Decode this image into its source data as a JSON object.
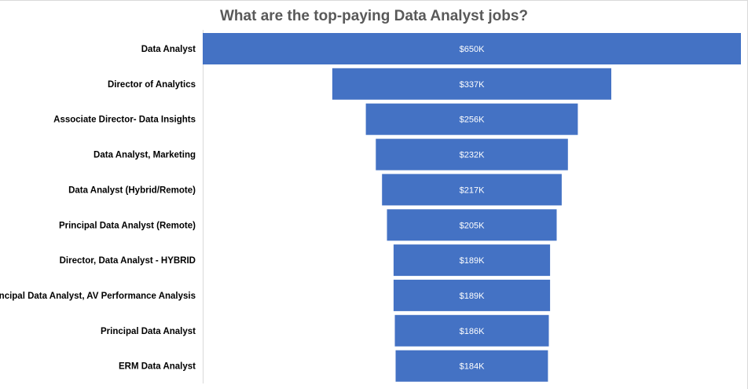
{
  "chart_data": {
    "type": "bar",
    "subtype": "funnel",
    "title": "What are the top-paying Data Analyst jobs?",
    "categories": [
      "Data Analyst",
      "Director of Analytics",
      "Associate Director- Data Insights",
      "Data Analyst, Marketing",
      "Data Analyst (Hybrid/Remote)",
      "Principal Data Analyst (Remote)",
      "Director, Data Analyst - HYBRID",
      "Principal Data Analyst, AV Performance Analysis",
      "Principal Data Analyst",
      "ERM Data Analyst"
    ],
    "values": [
      650,
      337,
      256,
      232,
      217,
      205,
      189,
      189,
      186,
      184
    ],
    "value_labels": [
      "$650K",
      "$337K",
      "$256K",
      "$232K",
      "$217K",
      "$205K",
      "$189K",
      "$189K",
      "$186K",
      "$184K"
    ],
    "xlabel": "",
    "ylabel": "",
    "bar_color": "#4472C4",
    "grid": false,
    "legend": "none"
  }
}
